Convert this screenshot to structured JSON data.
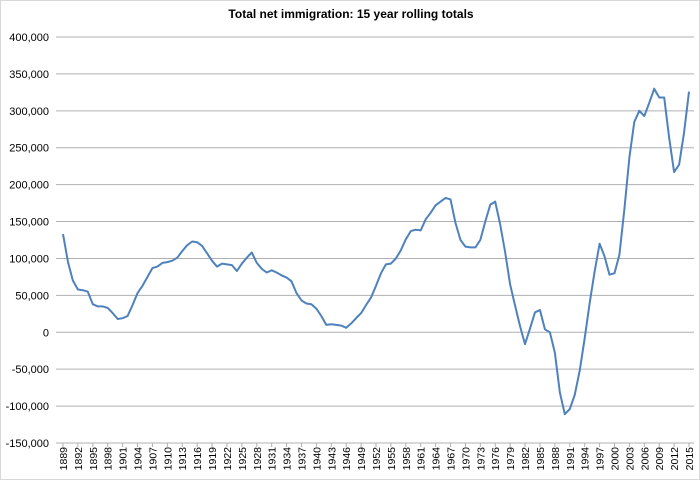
{
  "chart_data": {
    "type": "line",
    "title": "Total net immigration: 15 year rolling totals",
    "xlabel": "",
    "ylabel": "",
    "ylim": [
      -150000,
      400000
    ],
    "yticks": [
      400000,
      350000,
      300000,
      250000,
      200000,
      150000,
      100000,
      50000,
      0,
      -50000,
      -100000,
      -150000
    ],
    "ytick_labels": [
      "400,000",
      "350,000",
      "300,000",
      "250,000",
      "200,000",
      "150,000",
      "100,000",
      "50,000",
      "0",
      "-50,000",
      "-100,000",
      "-150,000"
    ],
    "xtick_labels": [
      "1889",
      "1892",
      "1895",
      "1898",
      "1901",
      "1904",
      "1907",
      "1910",
      "1913",
      "1916",
      "1919",
      "1922",
      "1925",
      "1928",
      "1931",
      "1934",
      "1937",
      "1940",
      "1943",
      "1946",
      "1949",
      "1952",
      "1955",
      "1958",
      "1961",
      "1964",
      "1967",
      "1970",
      "1973",
      "1976",
      "1979",
      "1982",
      "1985",
      "1988",
      "1991",
      "1994",
      "1997",
      "2000",
      "2003",
      "2006",
      "2009",
      "2012",
      "2015"
    ],
    "grid": true,
    "legend": "none",
    "line_color": "#4f81bd",
    "x": [
      1889,
      1890,
      1891,
      1892,
      1893,
      1894,
      1895,
      1896,
      1897,
      1898,
      1899,
      1900,
      1901,
      1902,
      1903,
      1904,
      1905,
      1906,
      1907,
      1908,
      1909,
      1910,
      1911,
      1912,
      1913,
      1914,
      1915,
      1916,
      1917,
      1918,
      1919,
      1920,
      1921,
      1922,
      1923,
      1924,
      1925,
      1926,
      1927,
      1928,
      1929,
      1930,
      1931,
      1932,
      1933,
      1934,
      1935,
      1936,
      1937,
      1938,
      1939,
      1940,
      1941,
      1942,
      1943,
      1944,
      1945,
      1946,
      1947,
      1948,
      1949,
      1950,
      1951,
      1952,
      1953,
      1954,
      1955,
      1956,
      1957,
      1958,
      1959,
      1960,
      1961,
      1962,
      1963,
      1964,
      1965,
      1966,
      1967,
      1968,
      1969,
      1970,
      1971,
      1972,
      1973,
      1974,
      1975,
      1976,
      1977,
      1978,
      1979,
      1980,
      1981,
      1982,
      1983,
      1984,
      1985,
      1986,
      1987,
      1988,
      1989,
      1990,
      1991,
      1992,
      1993,
      1994,
      1995,
      1996,
      1997,
      1998,
      1999,
      2000,
      2001,
      2002,
      2003,
      2004,
      2005,
      2006,
      2007,
      2008,
      2009,
      2010,
      2011,
      2012,
      2013,
      2014,
      2015
    ],
    "values": [
      133000,
      95000,
      70000,
      58000,
      57000,
      55000,
      38000,
      35000,
      35000,
      33000,
      26000,
      18000,
      19000,
      22000,
      37000,
      53000,
      63000,
      75000,
      87000,
      89000,
      94000,
      95000,
      97000,
      101000,
      110000,
      118000,
      123000,
      122000,
      117000,
      107000,
      97000,
      89000,
      93000,
      92000,
      91000,
      83000,
      93000,
      101000,
      108000,
      94000,
      86000,
      81000,
      84000,
      81000,
      77000,
      74000,
      69000,
      53000,
      43000,
      39000,
      38000,
      32000,
      22000,
      10000,
      11000,
      10000,
      9000,
      6000,
      12000,
      19000,
      26000,
      37000,
      47000,
      63000,
      80000,
      92000,
      93000,
      100000,
      111000,
      126000,
      137000,
      139000,
      138000,
      153000,
      162000,
      172000,
      177000,
      182000,
      180000,
      148000,
      125000,
      116000,
      115000,
      115000,
      125000,
      150000,
      173000,
      177000,
      146000,
      108000,
      65000,
      36000,
      8000,
      -16000,
      5000,
      27000,
      30000,
      4000,
      0,
      -28000,
      -81000,
      -111000,
      -104000,
      -85000,
      -52000,
      -8000,
      39000,
      82000,
      120000,
      103000,
      78000,
      80000,
      105000,
      167000,
      237000,
      285000,
      300000,
      293000,
      311000,
      330000,
      318000,
      318000,
      264000,
      217000,
      227000,
      270000,
      326000
    ]
  }
}
